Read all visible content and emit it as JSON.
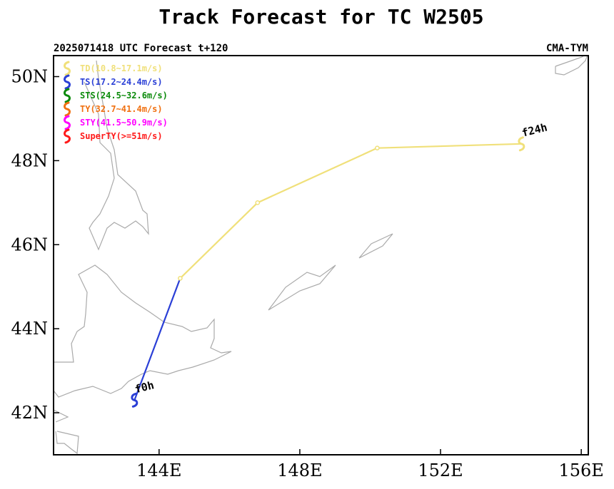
{
  "chart_data": {
    "type": "line",
    "title": "Track Forecast for TC W2505",
    "subtitle_left": "2025071418 UTC Forecast t+120",
    "subtitle_right": "CMA-TYM",
    "xlim": [
      141.0,
      156.2
    ],
    "ylim": [
      41.0,
      50.5
    ],
    "x_ticks": [
      {
        "value": 144,
        "label": "144E"
      },
      {
        "value": 148,
        "label": "148E"
      },
      {
        "value": 152,
        "label": "152E"
      },
      {
        "value": 156,
        "label": "156E"
      }
    ],
    "y_ticks": [
      {
        "value": 42,
        "label": "42N"
      },
      {
        "value": 44,
        "label": "44N"
      },
      {
        "value": 46,
        "label": "46N"
      },
      {
        "value": 48,
        "label": "48N"
      },
      {
        "value": 50,
        "label": "50N"
      }
    ],
    "grid": false,
    "legend_position": "top-left",
    "legend": [
      {
        "label": "TD(10.8~17.1m/s)",
        "color": "#f0e07a"
      },
      {
        "label": "TS(17.2~24.4m/s)",
        "color": "#2a3fd6"
      },
      {
        "label": "STS(24.5~32.6m/s)",
        "color": "#0b8a0b"
      },
      {
        "label": "TY(32.7~41.4m/s)",
        "color": "#f07010"
      },
      {
        "label": "STY(41.5~50.9m/s)",
        "color": "#ff00ff"
      },
      {
        "label": "SuperTY(>=51m/s)",
        "color": "#ff1a1a"
      }
    ],
    "track": [
      {
        "lon": 143.3,
        "lat": 42.3,
        "category": "TS"
      },
      {
        "lon": 144.6,
        "lat": 45.2,
        "category": "TD"
      },
      {
        "lon": 146.8,
        "lat": 47.0,
        "category": "TD"
      },
      {
        "lon": 150.2,
        "lat": 48.3,
        "category": "TD"
      },
      {
        "lon": 154.3,
        "lat": 48.4,
        "category": "TD"
      }
    ],
    "annotations": [
      {
        "text": "f0h",
        "lon": 143.3,
        "lat": 42.3
      },
      {
        "text": "f24h",
        "lon": 154.3,
        "lat": 48.4
      }
    ],
    "colors": {
      "TD": "#f0e07a",
      "TS": "#2a3fd6",
      "coastline": "#aaaaaa",
      "frame": "#000000"
    }
  }
}
